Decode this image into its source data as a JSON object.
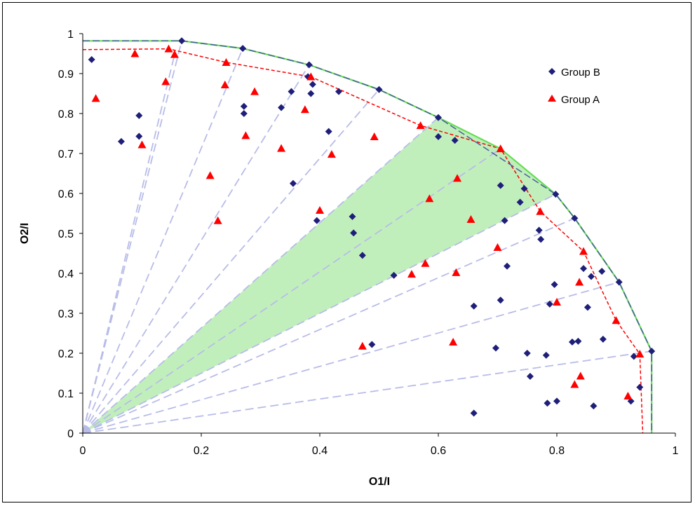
{
  "chart_data": {
    "type": "scatter",
    "xlabel": "O1/I",
    "ylabel": "O2/I",
    "xlim": [
      0,
      1
    ],
    "ylim": [
      0,
      1
    ],
    "x_ticks": [
      "0",
      "0.2",
      "0.4",
      "0.6",
      "0.8",
      "1"
    ],
    "y_ticks": [
      "0",
      "0.1",
      "0.2",
      "0.3",
      "0.4",
      "0.5",
      "0.6",
      "0.7",
      "0.8",
      "0.9",
      "1"
    ],
    "legend_position": "top-right",
    "grid": false,
    "colors": {
      "group_b": "#1f1f7a",
      "group_a": "#ff0000",
      "frontier_b": "#4a5f9c",
      "frontier_green": "#66dd55",
      "frontier_a": "#ff0000",
      "rays": "#b8bce8",
      "shaded": "#b6ecb0"
    },
    "series": [
      {
        "name": "Group B",
        "marker": "diamond",
        "points": [
          [
            0.015,
            0.935
          ],
          [
            0.065,
            0.73
          ],
          [
            0.095,
            0.795
          ],
          [
            0.095,
            0.743
          ],
          [
            0.167,
            0.982
          ],
          [
            0.27,
            0.963
          ],
          [
            0.272,
            0.818
          ],
          [
            0.272,
            0.8
          ],
          [
            0.335,
            0.815
          ],
          [
            0.352,
            0.855
          ],
          [
            0.355,
            0.625
          ],
          [
            0.382,
            0.922
          ],
          [
            0.38,
            0.892
          ],
          [
            0.385,
            0.85
          ],
          [
            0.388,
            0.873
          ],
          [
            0.395,
            0.532
          ],
          [
            0.415,
            0.755
          ],
          [
            0.432,
            0.855
          ],
          [
            0.455,
            0.542
          ],
          [
            0.457,
            0.501
          ],
          [
            0.472,
            0.445
          ],
          [
            0.488,
            0.222
          ],
          [
            0.5,
            0.86
          ],
          [
            0.525,
            0.395
          ],
          [
            0.6,
            0.79
          ],
          [
            0.6,
            0.742
          ],
          [
            0.628,
            0.733
          ],
          [
            0.66,
            0.318
          ],
          [
            0.66,
            0.05
          ],
          [
            0.697,
            0.213
          ],
          [
            0.705,
            0.333
          ],
          [
            0.705,
            0.62
          ],
          [
            0.712,
            0.532
          ],
          [
            0.716,
            0.418
          ],
          [
            0.738,
            0.578
          ],
          [
            0.745,
            0.612
          ],
          [
            0.75,
            0.2
          ],
          [
            0.755,
            0.142
          ],
          [
            0.77,
            0.508
          ],
          [
            0.773,
            0.485
          ],
          [
            0.782,
            0.195
          ],
          [
            0.784,
            0.075
          ],
          [
            0.788,
            0.323
          ],
          [
            0.796,
            0.372
          ],
          [
            0.798,
            0.598
          ],
          [
            0.8,
            0.08
          ],
          [
            0.826,
            0.228
          ],
          [
            0.83,
            0.538
          ],
          [
            0.836,
            0.23
          ],
          [
            0.845,
            0.412
          ],
          [
            0.852,
            0.315
          ],
          [
            0.858,
            0.392
          ],
          [
            0.862,
            0.068
          ],
          [
            0.876,
            0.405
          ],
          [
            0.878,
            0.235
          ],
          [
            0.905,
            0.378
          ],
          [
            0.925,
            0.08
          ],
          [
            0.93,
            0.192
          ],
          [
            0.94,
            0.115
          ],
          [
            0.96,
            0.205
          ]
        ]
      },
      {
        "name": "Group A",
        "marker": "triangle",
        "points": [
          [
            0.022,
            0.838
          ],
          [
            0.088,
            0.95
          ],
          [
            0.1,
            0.722
          ],
          [
            0.14,
            0.88
          ],
          [
            0.145,
            0.962
          ],
          [
            0.155,
            0.948
          ],
          [
            0.215,
            0.645
          ],
          [
            0.228,
            0.532
          ],
          [
            0.24,
            0.872
          ],
          [
            0.242,
            0.928
          ],
          [
            0.275,
            0.745
          ],
          [
            0.29,
            0.855
          ],
          [
            0.335,
            0.713
          ],
          [
            0.375,
            0.81
          ],
          [
            0.385,
            0.892
          ],
          [
            0.42,
            0.698
          ],
          [
            0.4,
            0.558
          ],
          [
            0.472,
            0.218
          ],
          [
            0.492,
            0.742
          ],
          [
            0.555,
            0.398
          ],
          [
            0.57,
            0.77
          ],
          [
            0.578,
            0.425
          ],
          [
            0.585,
            0.587
          ],
          [
            0.625,
            0.228
          ],
          [
            0.63,
            0.402
          ],
          [
            0.632,
            0.638
          ],
          [
            0.655,
            0.535
          ],
          [
            0.7,
            0.465
          ],
          [
            0.705,
            0.712
          ],
          [
            0.772,
            0.555
          ],
          [
            0.8,
            0.328
          ],
          [
            0.83,
            0.122
          ],
          [
            0.838,
            0.378
          ],
          [
            0.84,
            0.143
          ],
          [
            0.845,
            0.455
          ],
          [
            0.9,
            0.282
          ],
          [
            0.92,
            0.093
          ],
          [
            0.94,
            0.198
          ]
        ]
      }
    ],
    "frontier_b": [
      [
        0,
        0.982
      ],
      [
        0.167,
        0.982
      ],
      [
        0.27,
        0.963
      ],
      [
        0.382,
        0.922
      ],
      [
        0.5,
        0.86
      ],
      [
        0.6,
        0.79
      ],
      [
        0.798,
        0.598
      ],
      [
        0.83,
        0.538
      ],
      [
        0.905,
        0.378
      ],
      [
        0.96,
        0.205
      ],
      [
        0.96,
        0
      ]
    ],
    "frontier_green": [
      [
        0,
        0.982
      ],
      [
        0.167,
        0.982
      ],
      [
        0.27,
        0.963
      ],
      [
        0.382,
        0.922
      ],
      [
        0.5,
        0.86
      ],
      [
        0.6,
        0.79
      ],
      [
        0.705,
        0.712
      ],
      [
        0.798,
        0.598
      ],
      [
        0.83,
        0.538
      ],
      [
        0.905,
        0.378
      ],
      [
        0.96,
        0.205
      ],
      [
        0.96,
        0
      ]
    ],
    "frontier_a": [
      [
        0,
        0.96
      ],
      [
        0.145,
        0.962
      ],
      [
        0.242,
        0.928
      ],
      [
        0.385,
        0.892
      ],
      [
        0.57,
        0.77
      ],
      [
        0.705,
        0.712
      ],
      [
        0.772,
        0.555
      ],
      [
        0.845,
        0.455
      ],
      [
        0.9,
        0.282
      ],
      [
        0.94,
        0.198
      ],
      [
        0.945,
        0
      ],
      [
        0.945,
        0.0
      ]
    ],
    "rays_to": [
      [
        0.167,
        0.982
      ],
      [
        0.27,
        0.963
      ],
      [
        0.382,
        0.922
      ],
      [
        0.5,
        0.86
      ],
      [
        0.6,
        0.79
      ],
      [
        0.798,
        0.598
      ],
      [
        0.83,
        0.538
      ],
      [
        0.905,
        0.378
      ],
      [
        0.96,
        0.205
      ],
      [
        0.705,
        0.712
      ],
      [
        0.155,
        0.948
      ]
    ],
    "shaded_region": [
      [
        0,
        0
      ],
      [
        0.6,
        0.79
      ],
      [
        0.705,
        0.712
      ],
      [
        0.798,
        0.598
      ]
    ]
  }
}
